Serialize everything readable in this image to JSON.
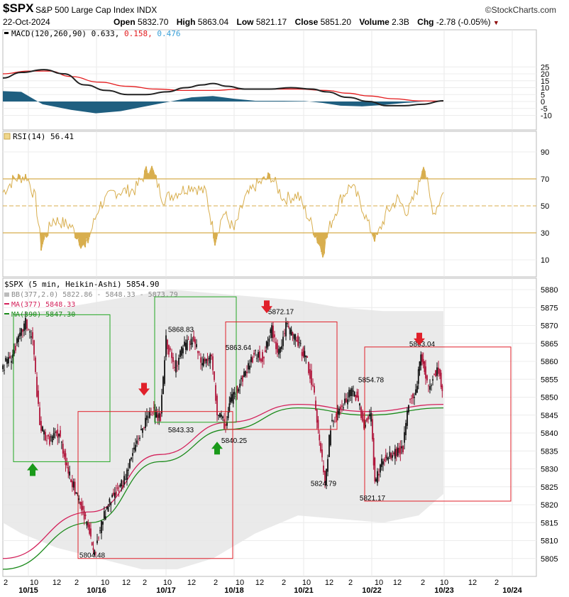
{
  "header": {
    "symbol": "$SPX",
    "name": "S&P 500 Large Cap Index",
    "exchange": "INDX",
    "brand": "©StockCharts.com",
    "date": "22-Oct-2024",
    "open_label": "Open",
    "open": "5832.70",
    "high_label": "High",
    "high": "5863.04",
    "low_label": "Low",
    "low": "5821.17",
    "close_label": "Close",
    "close": "5851.20",
    "volume_label": "Volume",
    "volume": "2.3B",
    "chg_label": "Chg",
    "chg": "-2.78 (-0.05%)"
  },
  "macd_panel": {
    "label": "MACD(120,260,90)",
    "value": "0.633,",
    "signal": "0.158,",
    "hist": "0.476",
    "colors": {
      "macd": "#000000",
      "signal": "#e31a1c",
      "hist": "#1f5f80",
      "signal_text": "#e31a1c",
      "hist_text": "#3aa0d8"
    },
    "ticks": [
      "25",
      "20",
      "15",
      "10",
      "5",
      "0",
      "-5",
      "-10"
    ]
  },
  "rsi_panel": {
    "label": "RSI(14) 56.41",
    "ticks": [
      "90",
      "70",
      "50",
      "30",
      "10"
    ],
    "color": "#d8ae4e"
  },
  "price_panel": {
    "label": "$SPX (5 min, Heikin-Ashi) 5854.90",
    "bb_label": "BB(377,2.0) 5822.86 - 5848.33 - 5873.79",
    "ma1_label": "MA(377) 5848.33",
    "ma2_label": "MA(390) 5847.30",
    "ticks": [
      "5880",
      "5875",
      "5870",
      "5865",
      "5860",
      "5855",
      "5850",
      "5845",
      "5840",
      "5835",
      "5830",
      "5825",
      "5820",
      "5815",
      "5810",
      "5805"
    ],
    "annotations": [
      "5868.83",
      "5872.17",
      "5863.64",
      "5843.33",
      "5840.25",
      "5854.78",
      "5863.04",
      "5824.79",
      "5821.17",
      "5804.48"
    ]
  },
  "x_axis": {
    "hours": [
      "2",
      "10",
      "12",
      "2",
      "10",
      "12",
      "2",
      "10",
      "12",
      "2",
      "10",
      "12",
      "2",
      "10",
      "12",
      "2",
      "10",
      "12",
      "2",
      "10",
      "12",
      "2"
    ],
    "dates": [
      "10/15",
      "10/16",
      "10/17",
      "10/18",
      "10/21",
      "10/22",
      "10/23",
      "10/24"
    ]
  },
  "chart_data": {
    "type": "line",
    "title": "$SPX S&P 500 Large Cap Index",
    "x": [
      "10/15",
      "10/16",
      "10/17",
      "10/18",
      "10/21",
      "10/22",
      "10/23"
    ],
    "series": [
      {
        "name": "$SPX (5 min, Heikin-Ashi)",
        "values": [
          5860,
          5815,
          5860,
          5865,
          5835,
          5840,
          5851
        ]
      },
      {
        "name": "MA(377)",
        "values": [
          5805,
          5818,
          5834,
          5843,
          5848,
          5846,
          5848
        ]
      },
      {
        "name": "MA(390)",
        "values": [
          5802,
          5815,
          5832,
          5841,
          5847,
          5845,
          5847
        ]
      }
    ],
    "ylim": [
      5802,
      5882
    ],
    "grid": true
  }
}
